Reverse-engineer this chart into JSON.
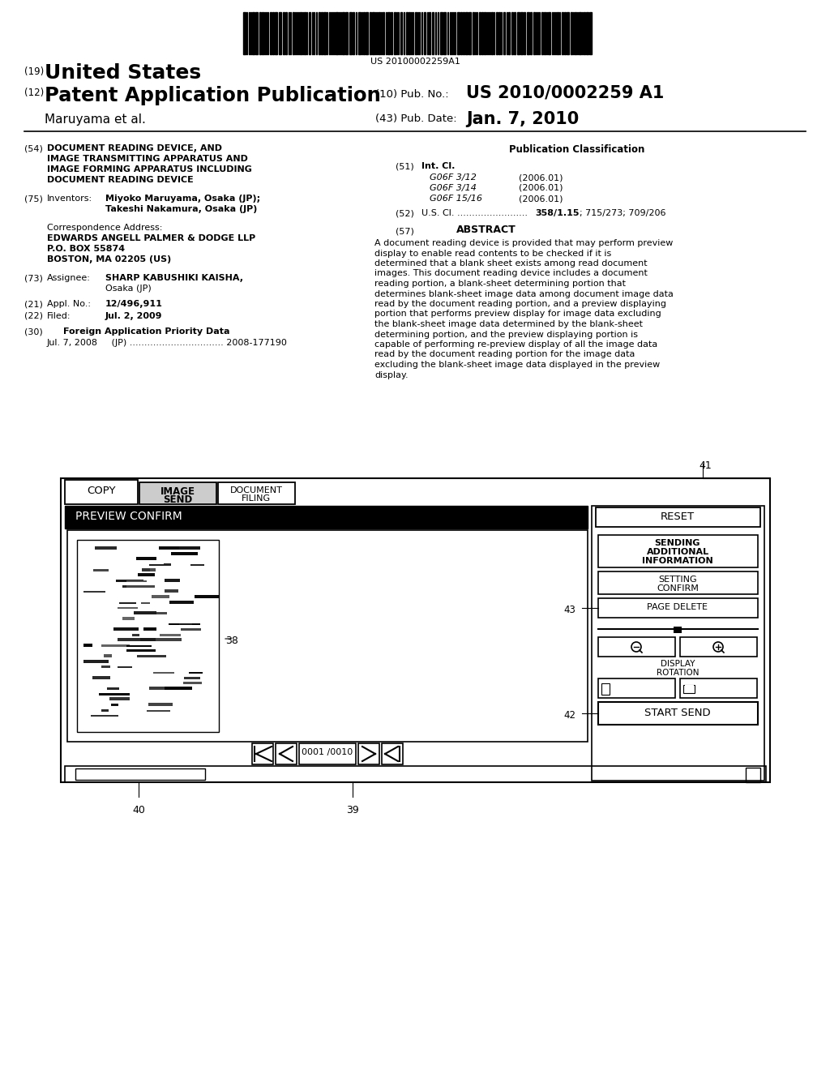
{
  "bg_color": "#ffffff",
  "barcode_text": "US 20100002259A1",
  "title19_text": "United States",
  "title12_text": "Patent Application Publication",
  "pub_no_label": "(10) Pub. No.:",
  "pub_no": "US 2010/0002259 A1",
  "inventor_label": "Maruyama et al.",
  "pub_date_label": "(43) Pub. Date:",
  "pub_date": "Jan. 7, 2010",
  "field54_line1": "DOCUMENT READING DEVICE, AND",
  "field54_line2": "IMAGE TRANSMITTING APPARATUS AND",
  "field54_line3": "IMAGE FORMING APPARATUS INCLUDING",
  "field54_line4": "DOCUMENT READING DEVICE",
  "field75_line1": "Miyoko Maruyama, Osaka (JP);",
  "field75_line2": "Takeshi Nakamura, Osaka (JP)",
  "corr_label": "Correspondence Address:",
  "corr_line1": "EDWARDS ANGELL PALMER & DODGE LLP",
  "corr_line2": "P.O. BOX 55874",
  "corr_line3": "BOSTON, MA 02205 (US)",
  "field73_line1": "SHARP KABUSHIKI KAISHA,",
  "field73_line2": "Osaka (JP)",
  "field21_value": "12/496,911",
  "field22_value": "Jul. 2, 2009",
  "field30_label": "Foreign Application Priority Data",
  "field30_line1": "Jul. 7, 2008     (JP) ................................ 2008-177190",
  "pub_class_title": "Publication Classification",
  "field51_label": "Int. Cl.",
  "field51_line1": "G06F 3/12",
  "field51_date1": "(2006.01)",
  "field51_line2": "G06F 3/14",
  "field51_date2": "(2006.01)",
  "field51_line3": "G06F 15/16",
  "field51_date3": "(2006.01)",
  "field52_text": "U.S. Cl. ........................ 358/1.15; 715/273; 709/206",
  "field52_bold": "358/1.15",
  "field57_label": "ABSTRACT",
  "abstract_text": "A document reading device is provided that may perform preview display to enable read contents to be checked if it is determined that a blank sheet exists among read document images. This document reading device includes a document reading portion, a blank-sheet determining portion that determines blank-sheet image data among document image data read by the document reading portion, and a preview displaying portion that performs preview display for image data excluding the blank-sheet image data determined by the blank-sheet determining portion, and the preview displaying portion is capable of performing re-preview display of all the image data read by the document reading portion for the image data excluding the blank-sheet image data displayed in the preview display."
}
